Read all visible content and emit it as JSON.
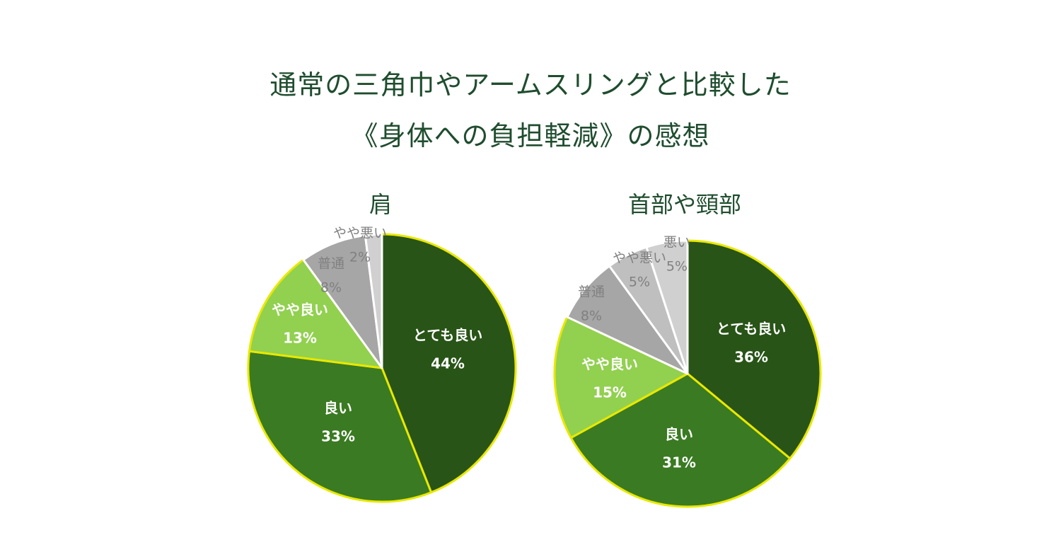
{
  "title": {
    "line1": "通常の三角巾やアームスリングと比較した",
    "line2": "《身体への負担軽減》の感想"
  },
  "colors": {
    "title": "#1f4d2e",
    "outline": "#e8e800",
    "separator": "#ffffff"
  },
  "chart_data": [
    {
      "type": "pie",
      "title": "肩",
      "categories": [
        "とても良い",
        "良い",
        "やや良い",
        "普通",
        "やや悪い"
      ],
      "values": [
        44,
        33,
        13,
        8,
        2
      ],
      "value_labels": [
        "44%",
        "33%",
        "13%",
        "8%",
        "2%"
      ],
      "colors": [
        "#285417",
        "#3a7a22",
        "#92d050",
        "#a6a6a6",
        "#d0d0d0"
      ],
      "label_style": [
        "light",
        "light",
        "light",
        "dark",
        "dark"
      ]
    },
    {
      "type": "pie",
      "title": "首部や頸部",
      "categories": [
        "とても良い",
        "良い",
        "やや良い",
        "普通",
        "やや悪い",
        "悪い"
      ],
      "values": [
        36,
        31,
        15,
        8,
        5,
        5
      ],
      "value_labels": [
        "36%",
        "31%",
        "15%",
        "8%",
        "5%",
        "5%"
      ],
      "colors": [
        "#285417",
        "#3a7a22",
        "#92d050",
        "#a6a6a6",
        "#bfbfbf",
        "#d0d0d0"
      ],
      "label_style": [
        "light",
        "light",
        "light",
        "dark",
        "dark",
        "dark"
      ]
    }
  ]
}
